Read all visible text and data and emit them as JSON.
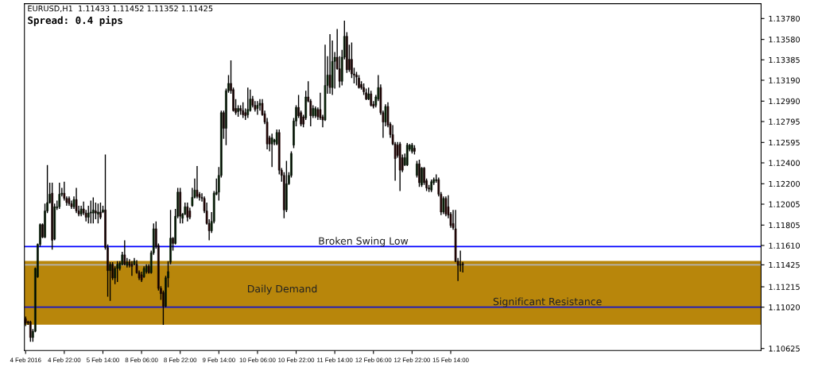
{
  "chart_data": {
    "type": "candlestick",
    "title": "EURUSD,H1  1.11433 1.11452 1.11352 1.11425",
    "subtitle": "Spread: 0.4 pips",
    "categories": [
      "4 Feb 2016",
      null,
      null,
      null,
      null,
      null,
      null,
      null,
      null,
      null,
      null,
      null,
      null,
      null,
      null,
      null,
      "4 Feb 22:00",
      null,
      null,
      null,
      null,
      null,
      null,
      null,
      null,
      null,
      null,
      null,
      null,
      null,
      null,
      null,
      "5 Feb 14:00",
      null,
      null,
      null,
      null,
      null,
      null,
      null,
      null,
      null,
      null,
      null,
      null,
      null,
      null,
      null,
      "8 Feb 06:00",
      null,
      null,
      null,
      null,
      null,
      null,
      null,
      null,
      null,
      null,
      null,
      null,
      null,
      null,
      null,
      "8 Feb 22:00",
      null,
      null,
      null,
      null,
      null,
      null,
      null,
      null,
      null,
      null,
      null,
      null,
      null,
      null,
      null,
      "9 Feb 14:00",
      null,
      null,
      null,
      null,
      null,
      null,
      null,
      null,
      null,
      null,
      null,
      null,
      null,
      null,
      null,
      "10 Feb 06:00",
      null,
      null,
      null,
      null,
      null,
      null,
      null,
      null,
      null,
      null,
      null,
      null,
      null,
      null,
      null,
      "10 Feb 22:00",
      null,
      null,
      null,
      null,
      null,
      null,
      null,
      null,
      null,
      null,
      null,
      null,
      null,
      null,
      null,
      "11 Feb 14:00",
      null,
      null,
      null,
      null,
      null,
      null,
      null,
      null,
      null,
      null,
      null,
      null,
      null,
      null,
      null,
      "12 Feb 06:00",
      null,
      null,
      null,
      null,
      null,
      null,
      null,
      null,
      null,
      null,
      null,
      null,
      null,
      null,
      null,
      "12 Feb 22:00",
      null,
      null,
      null,
      null,
      null,
      null,
      null,
      null,
      null,
      null,
      null,
      null,
      null,
      null,
      null,
      "15 Feb 14:00",
      null,
      null,
      null,
      null,
      null,
      null,
      null,
      null,
      null,
      null,
      null,
      null,
      null,
      null,
      null,
      null,
      null,
      null,
      null,
      null,
      null,
      null,
      null,
      null,
      null,
      null,
      null,
      null,
      null,
      null,
      null,
      null,
      null,
      null,
      null,
      null,
      null,
      null,
      null,
      null,
      null,
      null,
      null,
      null,
      null,
      null,
      null,
      null,
      null,
      null,
      null,
      null,
      null,
      null,
      null,
      null,
      null,
      null,
      null,
      null,
      null,
      null,
      null,
      null,
      null,
      null,
      null,
      null,
      null,
      null,
      null,
      null,
      null,
      null,
      null,
      null,
      null,
      null,
      null,
      null,
      null,
      null,
      null,
      null,
      null,
      null,
      null,
      null,
      null,
      null,
      null,
      null,
      null,
      null,
      null,
      null,
      null,
      null,
      null,
      null,
      null,
      null,
      null,
      null,
      null,
      null,
      null,
      null,
      null,
      null,
      null,
      null,
      null,
      null,
      null,
      null,
      null,
      null,
      null,
      null,
      null,
      null,
      null,
      null,
      null,
      null,
      null,
      null
    ],
    "ohlc": [
      [
        1.1091,
        1.1093,
        1.1084,
        1.1087
      ],
      [
        1.1088,
        1.1089,
        1.1085,
        1.1087
      ],
      [
        1.1088,
        1.1089,
        1.1069,
        1.1073
      ],
      [
        1.1073,
        1.1081,
        1.1069,
        1.1079
      ],
      [
        1.1079,
        1.114,
        1.1078,
        1.1139
      ],
      [
        1.1131,
        1.1163,
        1.113,
        1.1162
      ],
      [
        1.1162,
        1.1182,
        1.116,
        1.1181
      ],
      [
        1.1181,
        1.1182,
        1.1168,
        1.1169
      ],
      [
        1.1169,
        1.1201,
        1.1168,
        1.1194
      ],
      [
        1.1194,
        1.1238,
        1.1192,
        1.1202
      ],
      [
        1.1202,
        1.1221,
        1.1201,
        1.121
      ],
      [
        1.1211,
        1.1221,
        1.1157,
        1.1166
      ],
      [
        1.1167,
        1.1201,
        1.1166,
        1.1198
      ],
      [
        1.1197,
        1.1204,
        1.1195,
        1.1198
      ],
      [
        1.1198,
        1.1221,
        1.1196,
        1.121
      ],
      [
        1.121,
        1.1216,
        1.1208,
        1.1211
      ],
      [
        1.1211,
        1.1222,
        1.1204,
        1.1206
      ],
      [
        1.1206,
        1.1208,
        1.1199,
        1.1202
      ],
      [
        1.1206,
        1.1208,
        1.1199,
        1.1201
      ],
      [
        1.1201,
        1.1204,
        1.1196,
        1.1198
      ],
      [
        1.1198,
        1.1208,
        1.1196,
        1.1205
      ],
      [
        1.1205,
        1.1216,
        1.1192,
        1.1194
      ],
      [
        1.1194,
        1.1199,
        1.1189,
        1.1191
      ],
      [
        1.1191,
        1.1199,
        1.1189,
        1.1196
      ],
      [
        1.1196,
        1.1203,
        1.119,
        1.1192
      ],
      [
        1.1192,
        1.1195,
        1.1184,
        1.1188
      ],
      [
        1.1188,
        1.1199,
        1.1182,
        1.1192
      ],
      [
        1.1192,
        1.1204,
        1.1182,
        1.1193
      ],
      [
        1.1192,
        1.1207,
        1.1182,
        1.1195
      ],
      [
        1.1194,
        1.1202,
        1.1186,
        1.1192
      ],
      [
        1.1191,
        1.1201,
        1.1182,
        1.1193
      ],
      [
        1.1193,
        1.1202,
        1.1186,
        1.1188
      ],
      [
        1.1193,
        1.1199,
        1.1192,
        1.1195
      ],
      [
        1.1195,
        1.1248,
        1.1157,
        1.1159
      ],
      [
        1.1159,
        1.1162,
        1.1112,
        1.1137
      ],
      [
        1.1137,
        1.1145,
        1.1108,
        1.1143
      ],
      [
        1.1143,
        1.1145,
        1.1128,
        1.113
      ],
      [
        1.113,
        1.1141,
        1.1124,
        1.1139
      ],
      [
        1.1139,
        1.1146,
        1.1126,
        1.1143
      ],
      [
        1.1139,
        1.1146,
        1.1137,
        1.1144
      ],
      [
        1.1143,
        1.1155,
        1.1142,
        1.1152
      ],
      [
        1.1152,
        1.1166,
        1.1142,
        1.1143
      ],
      [
        1.1142,
        1.1149,
        1.114,
        1.1145
      ],
      [
        1.1145,
        1.1148,
        1.114,
        1.1142
      ],
      [
        1.1143,
        1.1146,
        1.1132,
        1.1141
      ],
      [
        1.1143,
        1.1149,
        1.1142,
        1.1146
      ],
      [
        1.1143,
        1.1147,
        1.1134,
        1.1135
      ],
      [
        1.1135,
        1.1137,
        1.1128,
        1.113
      ],
      [
        1.1133,
        1.1136,
        1.1126,
        1.1128
      ],
      [
        1.1131,
        1.1141,
        1.113,
        1.1139
      ],
      [
        1.1136,
        1.1143,
        1.1134,
        1.1141
      ],
      [
        1.1141,
        1.1143,
        1.1134,
        1.1135
      ],
      [
        1.1135,
        1.1156,
        1.1134,
        1.1154
      ],
      [
        1.1154,
        1.1182,
        1.1152,
        1.1177
      ],
      [
        1.1177,
        1.1184,
        1.1158,
        1.116
      ],
      [
        1.1161,
        1.1163,
        1.1118,
        1.112
      ],
      [
        1.112,
        1.1122,
        1.1109,
        1.1115
      ],
      [
        1.1116,
        1.1118,
        1.1085,
        1.1103
      ],
      [
        1.1103,
        1.1132,
        1.1102,
        1.113
      ],
      [
        1.113,
        1.1146,
        1.1121,
        1.1136
      ],
      [
        1.1145,
        1.1195,
        1.1143,
        1.1168
      ],
      [
        1.1168,
        1.1169,
        1.1156,
        1.1163
      ],
      [
        1.1163,
        1.1196,
        1.1162,
        1.1189
      ],
      [
        1.1189,
        1.1216,
        1.1187,
        1.1212
      ],
      [
        1.1212,
        1.1216,
        1.1182,
        1.1189
      ],
      [
        1.1187,
        1.1192,
        1.1182,
        1.1191
      ],
      [
        1.1191,
        1.1202,
        1.119,
        1.1198
      ],
      [
        1.1198,
        1.1202,
        1.1184,
        1.1188
      ],
      [
        1.1194,
        1.1197,
        1.1186,
        1.1188
      ],
      [
        1.1199,
        1.1216,
        1.1198,
        1.1207
      ],
      [
        1.1207,
        1.1225,
        1.1206,
        1.1214
      ],
      [
        1.1214,
        1.1237,
        1.1206,
        1.1208
      ],
      [
        1.121,
        1.1212,
        1.1204,
        1.1207
      ],
      [
        1.1207,
        1.1211,
        1.1203,
        1.1206
      ],
      [
        1.1206,
        1.1208,
        1.1192,
        1.1194
      ],
      [
        1.1194,
        1.1202,
        1.1181,
        1.1182
      ],
      [
        1.1182,
        1.1186,
        1.1166,
        1.1175
      ],
      [
        1.1175,
        1.1193,
        1.1173,
        1.1184
      ],
      [
        1.1184,
        1.1213,
        1.1182,
        1.1211
      ],
      [
        1.121,
        1.1225,
        1.1209,
        1.1212
      ],
      [
        1.1212,
        1.1236,
        1.1204,
        1.1228
      ],
      [
        1.1228,
        1.129,
        1.1226,
        1.1288
      ],
      [
        1.1288,
        1.129,
        1.1263,
        1.1273
      ],
      [
        1.1273,
        1.1311,
        1.1257,
        1.1309
      ],
      [
        1.1309,
        1.1324,
        1.1307,
        1.1316
      ],
      [
        1.1316,
        1.1338,
        1.1306,
        1.1309
      ],
      [
        1.131,
        1.1312,
        1.1289,
        1.129
      ],
      [
        1.1292,
        1.1301,
        1.1286,
        1.1288
      ],
      [
        1.1289,
        1.1295,
        1.1284,
        1.1292
      ],
      [
        1.1292,
        1.1295,
        1.1286,
        1.129
      ],
      [
        1.129,
        1.1298,
        1.1283,
        1.1286
      ],
      [
        1.1288,
        1.1292,
        1.1281,
        1.1285
      ],
      [
        1.1286,
        1.1312,
        1.1283,
        1.1291
      ],
      [
        1.129,
        1.131,
        1.1289,
        1.1301
      ],
      [
        1.1301,
        1.1304,
        1.1293,
        1.1295
      ],
      [
        1.1295,
        1.1299,
        1.1289,
        1.1291
      ],
      [
        1.1292,
        1.1299,
        1.1286,
        1.1295
      ],
      [
        1.1295,
        1.1301,
        1.129,
        1.1297
      ],
      [
        1.1297,
        1.1301,
        1.1285,
        1.1286
      ],
      [
        1.1287,
        1.129,
        1.1277,
        1.1279
      ],
      [
        1.1279,
        1.1283,
        1.1253,
        1.1258
      ],
      [
        1.1264,
        1.1266,
        1.1251,
        1.1258
      ],
      [
        1.1258,
        1.1268,
        1.1236,
        1.1264
      ],
      [
        1.126,
        1.1263,
        1.1257,
        1.1262
      ],
      [
        1.1258,
        1.1272,
        1.1257,
        1.1269
      ],
      [
        1.1269,
        1.1272,
        1.1229,
        1.1233
      ],
      [
        1.1233,
        1.1235,
        1.1222,
        1.1228
      ],
      [
        1.1228,
        1.1231,
        1.1187,
        1.1195
      ],
      [
        1.1195,
        1.1242,
        1.1193,
        1.122
      ],
      [
        1.122,
        1.1231,
        1.1219,
        1.1228
      ],
      [
        1.1228,
        1.1251,
        1.1226,
        1.1249
      ],
      [
        1.1257,
        1.1283,
        1.1254,
        1.128
      ],
      [
        1.128,
        1.1295,
        1.1275,
        1.1293
      ],
      [
        1.1293,
        1.1305,
        1.1283,
        1.1285
      ],
      [
        1.1288,
        1.129,
        1.1275,
        1.1277
      ],
      [
        1.1284,
        1.1286,
        1.1274,
        1.1277
      ],
      [
        1.1283,
        1.1309,
        1.1281,
        1.1303
      ],
      [
        1.1303,
        1.1318,
        1.1298,
        1.1299
      ],
      [
        1.1299,
        1.1301,
        1.1275,
        1.1285
      ],
      [
        1.1285,
        1.1295,
        1.1283,
        1.1292
      ],
      [
        1.1285,
        1.1294,
        1.1283,
        1.1292
      ],
      [
        1.1291,
        1.1293,
        1.1281,
        1.1284
      ],
      [
        1.1291,
        1.1307,
        1.1281,
        1.1283
      ],
      [
        1.1284,
        1.1286,
        1.1274,
        1.1281
      ],
      [
        1.1281,
        1.1353,
        1.128,
        1.1314
      ],
      [
        1.1314,
        1.1342,
        1.1306,
        1.1324
      ],
      [
        1.1324,
        1.1363,
        1.1306,
        1.1312
      ],
      [
        1.1312,
        1.1357,
        1.1305,
        1.1337
      ],
      [
        1.1337,
        1.1346,
        1.1311,
        1.1341
      ],
      [
        1.1341,
        1.1368,
        1.1329,
        1.133
      ],
      [
        1.133,
        1.1342,
        1.1312,
        1.1318
      ],
      [
        1.1318,
        1.1348,
        1.1314,
        1.1341
      ],
      [
        1.1341,
        1.1376,
        1.1339,
        1.1361
      ],
      [
        1.1361,
        1.1365,
        1.1326,
        1.1329
      ],
      [
        1.1339,
        1.1353,
        1.1327,
        1.1329
      ],
      [
        1.1339,
        1.1355,
        1.1321,
        1.1325
      ],
      [
        1.1325,
        1.1331,
        1.1316,
        1.1324
      ],
      [
        1.1324,
        1.1327,
        1.1314,
        1.1322
      ],
      [
        1.1321,
        1.1324,
        1.1311,
        1.1312
      ],
      [
        1.1315,
        1.1318,
        1.131,
        1.1312
      ],
      [
        1.1312,
        1.1316,
        1.1305,
        1.1308
      ],
      [
        1.1307,
        1.1311,
        1.13,
        1.1301
      ],
      [
        1.1301,
        1.1312,
        1.13,
        1.1306
      ],
      [
        1.1306,
        1.1309,
        1.1294,
        1.1295
      ],
      [
        1.1296,
        1.1299,
        1.1292,
        1.1294
      ],
      [
        1.1295,
        1.1305,
        1.1293,
        1.1303
      ],
      [
        1.1301,
        1.1324,
        1.1299,
        1.1312
      ],
      [
        1.1312,
        1.1315,
        1.1286,
        1.1288
      ],
      [
        1.1288,
        1.129,
        1.1264,
        1.1279
      ],
      [
        1.1279,
        1.1296,
        1.1275,
        1.1294
      ],
      [
        1.1294,
        1.1298,
        1.1274,
        1.1276
      ],
      [
        1.1277,
        1.1279,
        1.1264,
        1.1267
      ],
      [
        1.1267,
        1.1276,
        1.1257,
        1.1258
      ],
      [
        1.1258,
        1.126,
        1.1223,
        1.1244
      ],
      [
        1.1257,
        1.126,
        1.1245,
        1.1247
      ],
      [
        1.1258,
        1.126,
        1.1213,
        1.1233
      ],
      [
        1.1245,
        1.1248,
        1.1231,
        1.1233
      ],
      [
        1.1238,
        1.1249,
        1.1237,
        1.1245
      ],
      [
        1.1238,
        1.1259,
        1.1237,
        1.1257
      ],
      [
        1.1253,
        1.1258,
        1.1251,
        1.1257
      ],
      [
        1.1251,
        1.1259,
        1.1249,
        1.1257
      ],
      [
        1.1254,
        1.1257,
        1.1248,
        1.1251
      ],
      [
        1.1228,
        1.1242,
        1.1226,
        1.1239
      ],
      [
        1.1239,
        1.1243,
        1.1217,
        1.1221
      ],
      [
        1.1219,
        1.1236,
        1.1217,
        1.1235
      ],
      [
        1.1235,
        1.1236,
        1.1219,
        1.1221
      ],
      [
        1.1223,
        1.1225,
        1.1213,
        1.1216
      ],
      [
        1.1216,
        1.1219,
        1.1212,
        1.1215
      ],
      [
        1.1214,
        1.1224,
        1.1212,
        1.1222
      ],
      [
        1.1221,
        1.1226,
        1.1219,
        1.1224
      ],
      [
        1.1223,
        1.1229,
        1.1221,
        1.1224
      ],
      [
        1.1224,
        1.1226,
        1.1208,
        1.121
      ],
      [
        1.121,
        1.1212,
        1.119,
        1.1193
      ],
      [
        1.1193,
        1.1208,
        1.1191,
        1.1206
      ],
      [
        1.1206,
        1.1208,
        1.1189,
        1.1191
      ],
      [
        1.1198,
        1.1209,
        1.1187,
        1.119
      ],
      [
        1.1191,
        1.1193,
        1.1178,
        1.118
      ],
      [
        1.1182,
        1.1195,
        1.1176,
        1.1178
      ],
      [
        1.1177,
        1.1195,
        1.1145,
        1.1146
      ],
      [
        1.1146,
        1.1149,
        1.1127,
        1.1142
      ],
      [
        1.1142,
        1.1156,
        1.1136,
        1.1143
      ],
      [
        1.11433,
        1.11452,
        1.11352,
        1.11425
      ],
      null,
      null,
      null,
      null,
      null,
      null,
      null,
      null,
      null,
      null,
      null,
      null,
      null,
      null,
      null,
      null,
      null,
      null,
      null,
      null,
      null,
      null,
      null,
      null,
      null,
      null,
      null,
      null,
      null,
      null,
      null,
      null,
      null,
      null,
      null,
      null,
      null,
      null,
      null,
      null,
      null,
      null,
      null,
      null,
      null,
      null,
      null,
      null,
      null,
      null,
      null,
      null,
      null,
      null,
      null,
      null,
      null,
      null,
      null,
      null,
      null,
      null,
      null,
      null,
      null,
      null,
      null,
      null,
      null,
      null,
      null,
      null,
      null,
      null,
      null,
      null,
      null,
      null,
      null,
      null,
      null,
      null,
      null,
      null,
      null,
      null,
      null,
      null,
      null,
      null,
      null,
      null,
      null,
      null,
      null,
      null,
      null,
      null,
      null,
      null,
      null,
      null,
      null,
      null,
      null,
      null,
      null,
      null,
      null,
      null,
      null,
      null,
      null,
      null,
      null,
      null,
      null,
      null,
      null,
      null,
      null,
      null,
      null
    ],
    "colors": [
      "#8b1414",
      "#8b1414",
      "#8b1414",
      "#1f8f1f",
      "#1f8f1f",
      "#1f8f1f",
      "#1f8f1f",
      "#8b1414",
      "#1f8f1f",
      "#1f8f1f",
      "#1f8f1f",
      "#8b1414",
      "#1f8f1f",
      "#1f8f1f",
      "#1f8f1f",
      "#1f8f1f",
      "#8b1414",
      "#8b1414",
      "#8b1414",
      "#8b1414",
      "#1f8f1f",
      "#8b1414",
      "#8b1414",
      "#1f8f1f",
      "#8b1414",
      "#8b1414",
      "#1f8f1f",
      "#1f8f1f",
      "#1f8f1f",
      "#8b1414",
      "#1f8f1f",
      "#8b1414",
      "#1f8f1f",
      "#8b1414",
      "#8b1414",
      "#1f8f1f",
      "#8b1414",
      "#1f8f1f",
      "#1f8f1f",
      "#1f8f1f",
      "#1f8f1f",
      "#8b1414",
      "#1f8f1f",
      "#8b1414",
      "#8b1414",
      "#1f8f1f",
      "#8b1414",
      "#8b1414",
      "#8b1414",
      "#1f8f1f",
      "#1f8f1f",
      "#8b1414",
      "#1f8f1f",
      "#1f8f1f",
      "#8b1414",
      "#8b1414",
      "#8b1414",
      "#8b1414",
      "#1f8f1f",
      "#1f8f1f",
      "#1f8f1f",
      "#8b1414",
      "#1f8f1f",
      "#1f8f1f",
      "#8b1414",
      "#1f8f1f",
      "#1f8f1f",
      "#8b1414",
      "#8b1414",
      "#1f8f1f",
      "#1f8f1f",
      "#8b1414",
      "#8b1414",
      "#8b1414",
      "#8b1414",
      "#8b1414",
      "#8b1414",
      "#1f8f1f",
      "#1f8f1f",
      "#1f8f1f",
      "#1f8f1f",
      "#1f8f1f",
      "#8b1414",
      "#1f8f1f",
      "#1f8f1f",
      "#8b1414",
      "#8b1414",
      "#8b1414",
      "#1f8f1f",
      "#8b1414",
      "#8b1414",
      "#8b1414",
      "#1f8f1f",
      "#1f8f1f",
      "#8b1414",
      "#8b1414",
      "#1f8f1f",
      "#1f8f1f",
      "#8b1414",
      "#8b1414",
      "#8b1414",
      "#8b1414",
      "#1f8f1f",
      "#1f8f1f",
      "#1f8f1f",
      "#8b1414",
      "#8b1414",
      "#8b1414",
      "#1f8f1f",
      "#1f8f1f",
      "#1f8f1f",
      "#1f8f1f",
      "#1f8f1f",
      "#8b1414",
      "#8b1414",
      "#8b1414",
      "#1f8f1f",
      "#8b1414",
      "#8b1414",
      "#1f8f1f",
      "#1f8f1f",
      "#8b1414",
      "#8b1414",
      "#8b1414",
      "#1f8f1f",
      "#1f8f1f",
      "#8b1414",
      "#1f8f1f",
      "#1f8f1f",
      "#8b1414",
      "#8b1414",
      "#1f8f1f",
      "#1f8f1f",
      "#8b1414",
      "#8b1414",
      "#8b1414",
      "#8b1414",
      "#8b1414",
      "#8b1414",
      "#8b1414",
      "#8b1414",
      "#8b1414",
      "#1f8f1f",
      "#8b1414",
      "#8b1414",
      "#1f8f1f",
      "#1f8f1f",
      "#8b1414",
      "#8b1414",
      "#1f8f1f",
      "#8b1414",
      "#8b1414",
      "#8b1414",
      "#8b1414",
      "#8b1414",
      "#8b1414",
      "#8b1414",
      "#1f8f1f",
      "#1f8f1f",
      "#1f8f1f",
      "#1f8f1f",
      "#8b1414",
      "#1f8f1f",
      "#8b1414",
      "#1f8f1f",
      "#8b1414",
      "#8b1414",
      "#8b1414",
      "#1f8f1f",
      "#1f8f1f",
      "#1f8f1f",
      "#8b1414",
      "#8b1414",
      "#1f8f1f",
      "#8b1414",
      "#8b1414",
      "#8b1414",
      "#8b1414",
      "#8b1414",
      "#8b1414",
      "#1f8f1f",
      "#8b1414",
      null,
      null,
      null,
      null,
      null,
      null,
      null,
      null,
      null,
      null,
      null,
      null,
      null,
      null,
      null,
      null,
      null,
      null,
      null,
      null,
      null,
      null,
      null,
      null,
      null,
      null,
      null,
      null,
      null,
      null,
      null,
      null,
      null,
      null,
      null,
      null,
      null,
      null,
      null,
      null,
      null,
      null,
      null,
      null,
      null,
      null,
      null,
      null,
      null,
      null,
      null,
      null,
      null,
      null,
      null,
      null,
      null,
      null,
      null,
      null,
      null,
      null,
      null,
      null,
      null,
      null,
      null,
      null,
      null,
      null,
      null,
      null,
      null,
      null,
      null,
      null,
      null,
      null,
      null,
      null,
      null,
      null,
      null,
      null,
      null,
      null,
      null,
      null,
      null,
      null,
      null,
      null,
      null,
      null,
      null,
      null,
      null,
      null,
      null,
      null,
      null,
      null,
      null,
      null,
      null,
      null,
      null,
      null,
      null,
      null,
      null,
      null,
      null,
      null,
      null,
      null,
      null,
      null,
      null,
      null,
      null,
      null,
      null
    ],
    "ylim": [
      1.10606,
      1.13922
    ],
    "yticks": [
      {
        "value": 1.1378,
        "label": "1.13780"
      },
      {
        "value": 1.1358,
        "label": "1.13580"
      },
      {
        "value": 1.13385,
        "label": "1.13385"
      },
      {
        "value": 1.1319,
        "label": "1.13190"
      },
      {
        "value": 1.1299,
        "label": "1.12990"
      },
      {
        "value": 1.12795,
        "label": "1.12795"
      },
      {
        "value": 1.12595,
        "label": "1.12595"
      },
      {
        "value": 1.124,
        "label": "1.12400"
      },
      {
        "value": 1.122,
        "label": "1.12200"
      },
      {
        "value": 1.12005,
        "label": "1.12005"
      },
      {
        "value": 1.11805,
        "label": "1.11805"
      },
      {
        "value": 1.1161,
        "label": "1.11610"
      },
      {
        "value": 1.11425,
        "label": "1.11425"
      },
      {
        "value": 1.11215,
        "label": "1.11215"
      },
      {
        "value": 1.1102,
        "label": "1.11020"
      },
      {
        "value": 1.10625,
        "label": "1.10625"
      }
    ],
    "bands": [
      {
        "axis": "y",
        "from": 1.10852,
        "to": 1.11463,
        "label": "Daily Demand",
        "color": "#b8860b"
      }
    ],
    "ref_lines": [
      {
        "axis": "y",
        "value": 1.11425,
        "color": "#b4b4b4"
      },
      {
        "axis": "y",
        "value": 1.116,
        "label": "Broken Swing Low",
        "color": "#0000ff"
      },
      {
        "axis": "y",
        "value": 1.1102,
        "label": "Significant Resistance",
        "color": "#1414c8"
      }
    ]
  }
}
